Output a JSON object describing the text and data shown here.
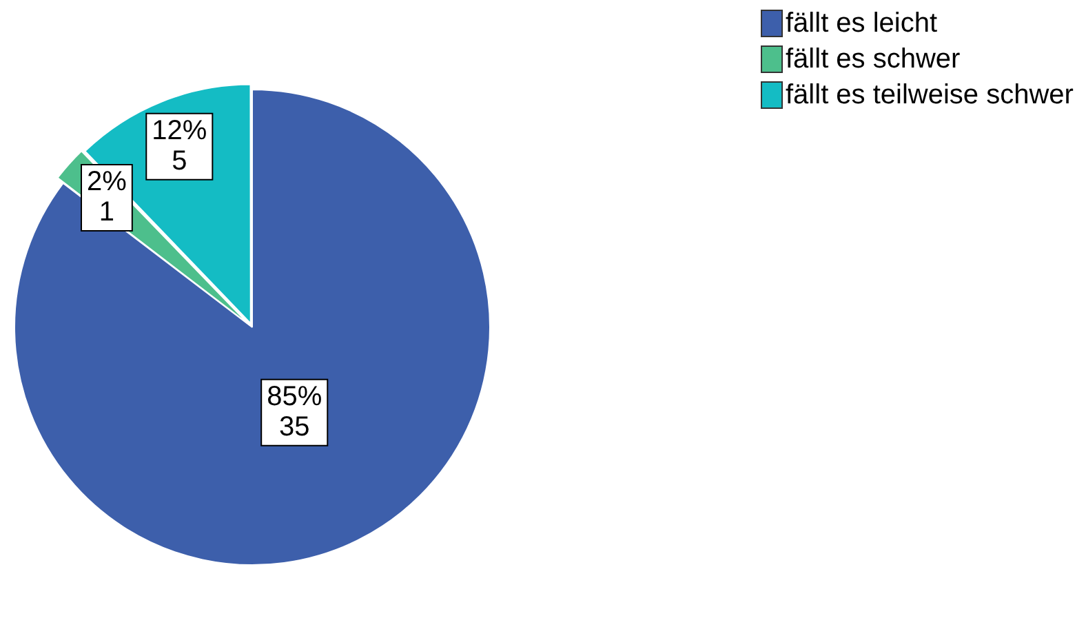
{
  "chart_data": {
    "type": "pie",
    "categories": [
      "fällt es leicht",
      "fällt es schwer",
      "fällt es teilweise schwer"
    ],
    "values": [
      35,
      1,
      5
    ],
    "colors": [
      "#3d5fab",
      "#4dbf8c",
      "#14bcc4"
    ],
    "value_labels": [
      "85%\n35",
      "2%\n1",
      "12%\n5"
    ],
    "legend": "top right"
  }
}
